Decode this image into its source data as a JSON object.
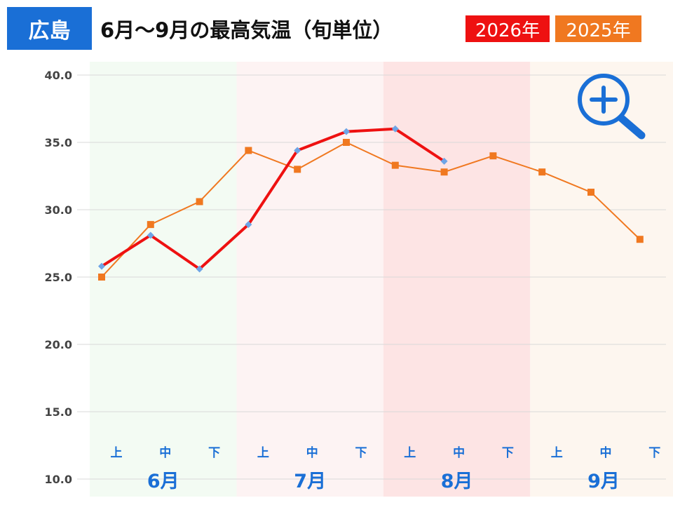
{
  "header": {
    "city_badge": "広島",
    "title": "6月～9月の最高気温（旬単位）"
  },
  "colors": {
    "city_badge": "#1a6fd6",
    "series_2026": "#ee1111",
    "series_2026_marker": "#6ea4e6",
    "series_2025": "#f07820",
    "band_june": "#f3fbf3",
    "band_july": "#fdf3f3",
    "band_august": "#fde4e4",
    "band_september": "#fdf6ef",
    "axis_label": "#1a6fd6",
    "zoom_icon": "#1a6fd6"
  },
  "icons": {
    "zoom": "zoom-in-magnifier-icon"
  },
  "chart_data": {
    "type": "line",
    "title": "6月～9月の最高気温（旬単位）",
    "xlabel": "",
    "ylabel": "",
    "ylim": [
      10,
      40
    ],
    "yticks": [
      "10.0",
      "15.0",
      "20.0",
      "25.0",
      "30.0",
      "35.0",
      "40.0"
    ],
    "grid": true,
    "legend_placement": "top-right",
    "months": [
      {
        "label": "6月",
        "deks": [
          "上",
          "中",
          "下"
        ]
      },
      {
        "label": "7月",
        "deks": [
          "上",
          "中",
          "下"
        ]
      },
      {
        "label": "8月",
        "deks": [
          "上",
          "中",
          "下"
        ]
      },
      {
        "label": "9月",
        "deks": [
          "上",
          "中",
          "下"
        ]
      }
    ],
    "series": [
      {
        "name": "2026年",
        "values": [
          25.8,
          28.1,
          25.6,
          28.9,
          34.4,
          35.8,
          36.0,
          33.6
        ]
      },
      {
        "name": "2025年",
        "values": [
          25.0,
          28.9,
          30.6,
          34.4,
          33.0,
          35.0,
          33.3,
          32.8,
          34.0,
          32.8,
          31.3,
          27.8
        ]
      }
    ]
  }
}
